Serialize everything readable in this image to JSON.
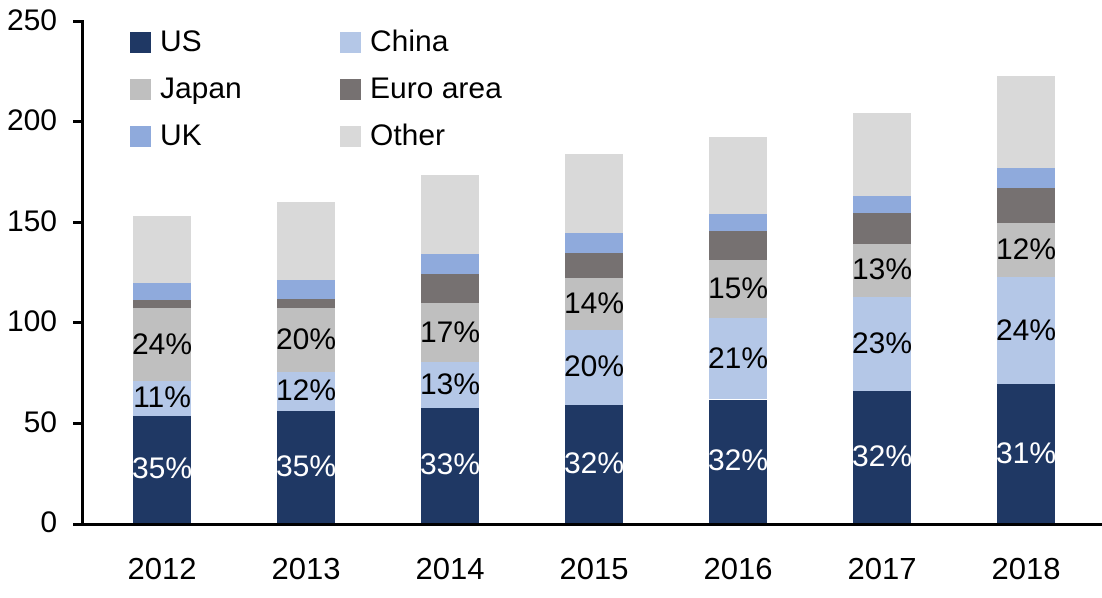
{
  "chart_data": {
    "type": "bar",
    "stacked": true,
    "title": "",
    "xlabel": "",
    "ylabel": "",
    "categories": [
      "2012",
      "2013",
      "2014",
      "2015",
      "2016",
      "2017",
      "2018"
    ],
    "series": [
      {
        "name": "US",
        "color": "#1F3864",
        "label_color": "#FFFFFF",
        "values": [
          53.5,
          56,
          57.5,
          59,
          61.5,
          65.5,
          69
        ],
        "labels": [
          "35%",
          "35%",
          "33%",
          "32%",
          "32%",
          "32%",
          "31%"
        ]
      },
      {
        "name": "China",
        "color": "#B4C7E7",
        "label_color": "#000000",
        "values": [
          17,
          19,
          22.5,
          37,
          40.5,
          47,
          53.5
        ],
        "labels": [
          "11%",
          "12%",
          "13%",
          "20%",
          "21%",
          "23%",
          "24%"
        ]
      },
      {
        "name": "Japan",
        "color": "#BFBFBF",
        "label_color": "#000000",
        "values": [
          36.5,
          32,
          29.5,
          26,
          29,
          26.5,
          27
        ],
        "labels": [
          "24%",
          "20%",
          "17%",
          "14%",
          "15%",
          "13%",
          "12%"
        ]
      },
      {
        "name": "Euro area",
        "color": "#767171",
        "label_color": "#000000",
        "values": [
          4,
          4.5,
          14.5,
          12.5,
          14.5,
          15.5,
          17.5
        ],
        "labels": [
          null,
          null,
          null,
          null,
          null,
          null,
          null
        ]
      },
      {
        "name": "UK",
        "color": "#8FAADC",
        "label_color": "#000000",
        "values": [
          8.5,
          9.5,
          10,
          10,
          8.5,
          8.5,
          10
        ],
        "labels": [
          null,
          null,
          null,
          null,
          null,
          null,
          null
        ]
      },
      {
        "name": "Other",
        "color": "#D9D9D9",
        "label_color": "#000000",
        "values": [
          33.5,
          39,
          39.5,
          39.5,
          38,
          41,
          45.5
        ],
        "labels": [
          null,
          null,
          null,
          null,
          null,
          null,
          null
        ]
      }
    ],
    "totals": [
      153,
      160,
      173.5,
      184,
      192,
      204,
      222.5
    ],
    "ylim": [
      0,
      250
    ],
    "yticks": [
      0,
      50,
      100,
      150,
      200,
      250
    ],
    "grid": false,
    "legend_position": "top-left",
    "legend_order": [
      "US",
      "China",
      "Japan",
      "Euro area",
      "UK",
      "Other"
    ],
    "axis_color": "#000000",
    "background_color": "#FFFFFF"
  }
}
